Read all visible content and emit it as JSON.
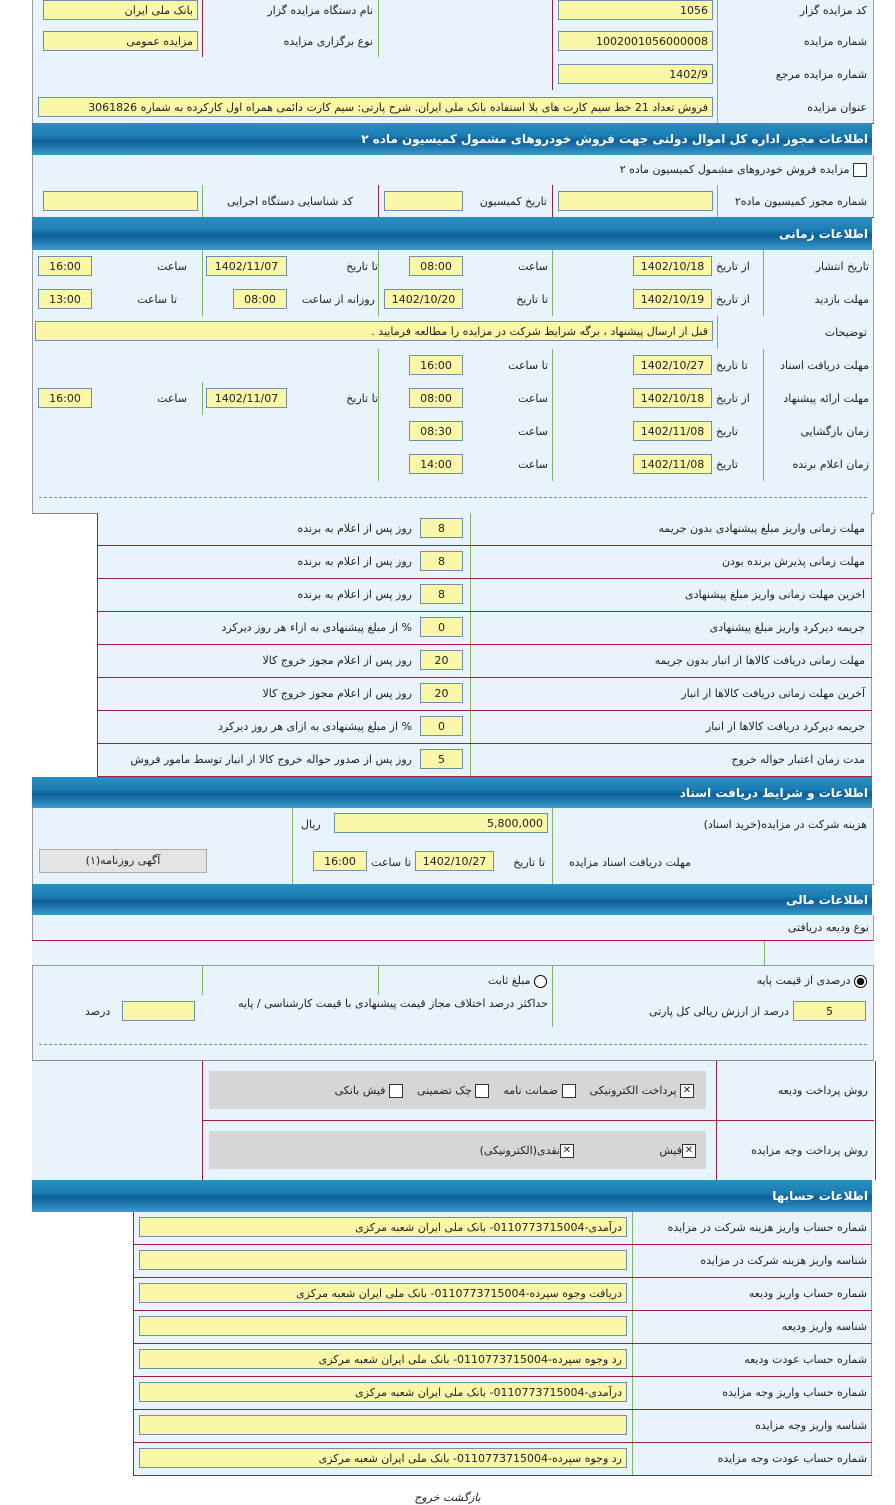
{
  "general": {
    "auctioneer_code_label": "کد مزایده گزار",
    "auctioneer_code": "1056",
    "auctioneer_name_label": "نام دستگاه مزایده گزار",
    "auctioneer_name": "بانک ملی ایران",
    "auction_number_label": "شماره مزایده",
    "auction_number": "1002001056000008",
    "auction_type_label": "نوع برگزاری مزایده",
    "auction_type": "مزایده عمومی",
    "reference_label": "شماره مزایده مرجع",
    "reference": "1402/9",
    "title_label": "عنوان مزایده",
    "title": "فروش تعداد 21 خط سیم کارت های بلا استفاده بانک ملی ایران. شرح پارتی: سیم کارت دائمی همراه اول کارکرده به شماره 3061826"
  },
  "permit": {
    "header": "اطلاعات مجوز اداره کل اموال دولتی جهت فروش خودروهای مشمول کمیسیون ماده ۲",
    "checkbox_label": "مزایده فروش خودروهای مشمول کمیسیون ماده ۲",
    "permit_number_label": "شماره مجوز کمیسیون ماده۲",
    "permit_number": "",
    "commission_date_label": "تاریخ کمیسیون",
    "commission_date": "",
    "agency_id_label": "کد شناسایی دستگاه اجرایی",
    "agency_id": ""
  },
  "timing": {
    "header": "اطلاعات زمانی",
    "publish": {
      "label": "تاریخ انتشار",
      "from_label": "از تاریخ",
      "from": "1402/10/18",
      "time_label": "ساعت",
      "time": "08:00",
      "to_label": "تا تاریخ",
      "to": "1402/11/07",
      "time2_label": "ساعت",
      "time2": "16:00"
    },
    "visit": {
      "label": "مهلت بازدید",
      "from_label": "از تاریخ",
      "from": "1402/10/19",
      "to_label": "تا تاریخ",
      "to": "1402/10/20",
      "daily_label": "روزانه از ساعت",
      "daily_from": "08:00",
      "daily_to_label": "تا ساعت",
      "daily_to": "13:00"
    },
    "notes_label": "توضیحات",
    "notes": "قبل از ارسال پیشنهاد ، برگه شرایط شرکت در مزایده را مطالعه فرمایید .",
    "docs": {
      "label": "مهلت دریافت اسناد",
      "to_label": "تا تاریخ",
      "to": "1402/10/27",
      "time_label": "تا ساعت",
      "time": "16:00"
    },
    "offer": {
      "label": "مهلت ارائه پیشنهاد",
      "from_label": "از تاریخ",
      "from": "1402/10/18",
      "time_label": "ساعت",
      "time": "08:00",
      "to_label": "تا تاریخ",
      "to": "1402/11/07",
      "time2_label": "ساعت",
      "time2": "16:00"
    },
    "opening": {
      "label": "زمان بازگشایی",
      "date_label": "تاریخ",
      "date": "1402/11/08",
      "time_label": "ساعت",
      "time": "08:30"
    },
    "winner": {
      "label": "زمان اعلام برنده",
      "date_label": "تاریخ",
      "date": "1402/11/08",
      "time_label": "ساعت",
      "time": "14:00"
    }
  },
  "deadlines": [
    {
      "label": "مهلت زمانی واریز مبلغ پیشنهادی بدون جریمه",
      "value": "8",
      "unit": "روز پس از اعلام به برنده"
    },
    {
      "label": "مهلت زمانی پذیرش برنده بودن",
      "value": "8",
      "unit": "روز پس از اعلام به برنده"
    },
    {
      "label": "اخرین مهلت زمانی واریز مبلغ پیشنهادی",
      "value": "8",
      "unit": "روز پس از اعلام به برنده"
    },
    {
      "label": "جریمه دیرکرد واریز مبلغ پیشنهادی",
      "value": "0",
      "unit": "% از مبلغ پیشنهادی به ازاء هر روز دیرکرد"
    },
    {
      "label": "مهلت زمانی دریافت کالاها از انبار بدون جریمه",
      "value": "20",
      "unit": "روز پس از اعلام مجوز خروج کالا"
    },
    {
      "label": "آخرین مهلت زمانی دریافت کالاها از انبار",
      "value": "20",
      "unit": "روز پس از اعلام مجوز خروج کالا"
    },
    {
      "label": "جریمه دیرکرد دریافت کالاها از انبار",
      "value": "0",
      "unit": "% از مبلغ پیشنهادی به ازای هر روز دیرکرد"
    },
    {
      "label": "مدت زمان اعتبار حواله خروج",
      "value": "5",
      "unit": "روز پس از صدور حواله خروج کالا از انبار توسط مامور فروش"
    }
  ],
  "documents": {
    "header": "اطلاعات و شرایط دریافت اسناد",
    "fee_label": "هزینه شرکت در مزایده(خرید اسناد)",
    "fee": "5,800,000",
    "fee_unit": "ریال",
    "deadline_label": "مهلت دریافت اسناد مزایده",
    "to_label": "تا تاریخ",
    "to": "1402/10/27",
    "time_label": "تا ساعت",
    "time": "16:00",
    "newspaper_button": "آگهی روزنامه(۱)"
  },
  "financial": {
    "header": "اطلاعات مالی",
    "deposit_type_label": "نوع ودیعه دریافتی",
    "radio_percent": "درصدی از قیمت پایه",
    "radio_fixed": "مبلغ ثابت",
    "selected": "percent",
    "percent_value": "5",
    "percent_unit": "درصد از ارزش ریالی کل پارتی",
    "max_diff_label": "حداکثر درصد اختلاف مجاز قیمت پیشنهادی با قیمت کارشناسی / پایه",
    "max_diff": "",
    "max_diff_unit": "درصد",
    "deposit_methods_label": "روش پرداخت ودیعه",
    "deposit_methods": [
      {
        "label": "پرداخت الکترونیکی",
        "checked": true
      },
      {
        "label": "ضمانت نامه",
        "checked": false
      },
      {
        "label": "چک تضمینی",
        "checked": false
      },
      {
        "label": "فیش بانکی",
        "checked": false
      }
    ],
    "payment_methods_label": "روش پرداخت وجه مزایده",
    "payment_methods": [
      {
        "label": "فیش",
        "checked": true
      },
      {
        "label": "نقدی(الکترونیکی)",
        "checked": true
      }
    ]
  },
  "accounts": {
    "header": "اطلاعات حسابها",
    "rows": [
      {
        "label": "شماره حساب واریز هزینه شرکت در مزایده",
        "value": "درآمدی-0110773715004- بانک ملی ایران شعبه مرکزی"
      },
      {
        "label": "شناسه واریز هزینه شرکت در مزایده",
        "value": ""
      },
      {
        "label": "شماره حساب واریز ودیعه",
        "value": "دریافت وجوه سپرده-0110773715004- بانک ملی ایران شعبه مرکزی"
      },
      {
        "label": "شناسه واریز ودیعه",
        "value": ""
      },
      {
        "label": "شماره حساب عودت ودیعه",
        "value": "رد وجوه سپرده-0110773715004- بانک ملی ایران شعبه مرکزی"
      },
      {
        "label": "شماره حساب واریز وجه مزایده",
        "value": "درآمدی-0110773715004- بانک ملی ایران شعبه مرکزی"
      },
      {
        "label": "شناسه واریز وجه مزایده",
        "value": ""
      },
      {
        "label": "شماره حساب عودت وجه مزایده",
        "value": "رد وجوه سپرده-0110773715004- بانک ملی ایران شعبه مرکزی"
      }
    ]
  },
  "footer": {
    "back": "بازگشت",
    "exit": "خروج"
  },
  "colors": {
    "header": "#1b7db3",
    "input": "#fbf7a8",
    "background": "#e8f3fc"
  }
}
